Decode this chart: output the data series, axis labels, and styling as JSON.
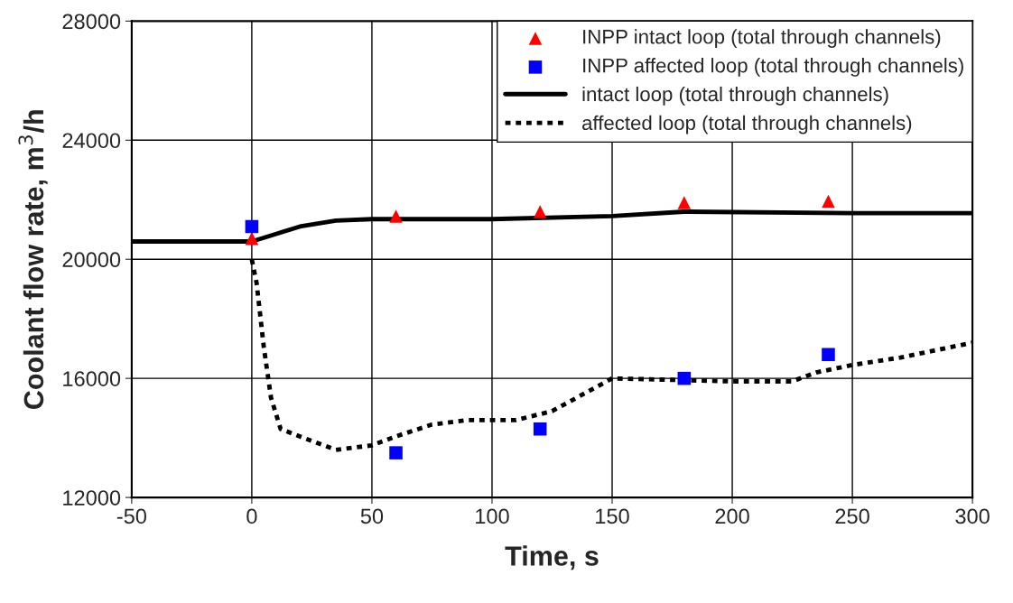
{
  "chart_data": {
    "type": "line",
    "xlabel": "Time, s",
    "ylabel": "Coolant flow rate, m$^{3}$/h",
    "xlim": [
      -50,
      300
    ],
    "xticks": [
      -50,
      0,
      50,
      100,
      150,
      200,
      250,
      300
    ],
    "ylim": [
      12000,
      28000
    ],
    "yticks": [
      12000,
      16000,
      20000,
      24000,
      28000
    ],
    "grid": true,
    "legend": "top right",
    "series": [
      {
        "name": "INPP intact loop (total through channels)",
        "type": "scatter",
        "marker": "triangle",
        "color": "#ff0000",
        "x": [
          0,
          60,
          120,
          180,
          240
        ],
        "values": [
          20700,
          21450,
          21600,
          21900,
          21950
        ]
      },
      {
        "name": "INPP affected loop (total through channels)",
        "type": "scatter",
        "marker": "square",
        "color": "#0000ff",
        "x": [
          0,
          60,
          120,
          180,
          240
        ],
        "values": [
          21100,
          13500,
          14300,
          16000,
          16800
        ]
      },
      {
        "name": "intact loop (total through channels)",
        "line_style": "solid",
        "color": "#000000",
        "x": [
          -50,
          0,
          10,
          20,
          35,
          50,
          100,
          150,
          180,
          250,
          300
        ],
        "values": [
          20600,
          20600,
          20850,
          21100,
          21300,
          21350,
          21350,
          21450,
          21600,
          21550,
          21550
        ]
      },
      {
        "name": "affected loop (total through channels)",
        "line_style": "dotted",
        "color": "#000000",
        "x": [
          0,
          2,
          5,
          8,
          12,
          20,
          35,
          50,
          60,
          75,
          90,
          110,
          125,
          150,
          200,
          225,
          235,
          250,
          270,
          300
        ],
        "values": [
          20000,
          19200,
          17050,
          15350,
          14300,
          14050,
          13600,
          13750,
          14050,
          14450,
          14600,
          14600,
          14900,
          16000,
          15900,
          15900,
          16200,
          16450,
          16700,
          17200
        ]
      }
    ]
  }
}
